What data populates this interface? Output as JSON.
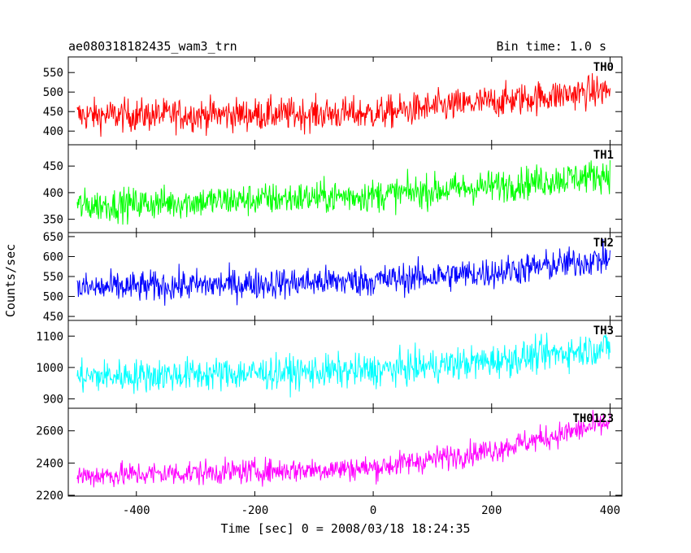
{
  "header": {
    "title": "ae080318182435_wam3_trn",
    "bin_time": "Bin time: 1.0 s"
  },
  "chart_data": {
    "type": "line",
    "title": "ae080318182435_wam3_trn",
    "xlabel": "Time [sec] 0 = 2008/03/18 18:24:35",
    "ylabel": "Counts/sec",
    "xlim": [
      -515,
      420
    ],
    "xticks": [
      -400,
      -200,
      0,
      200,
      400
    ],
    "x_start": -500,
    "x_end": 400,
    "x_step": 1,
    "grid": false,
    "panels": [
      {
        "name": "TH0",
        "color": "#ff0000",
        "ylim": [
          365,
          590
        ],
        "yticks": [
          400,
          450,
          500,
          550
        ],
        "trend": [
          [
            -500,
            440
          ],
          [
            0,
            445
          ],
          [
            200,
            475
          ],
          [
            400,
            505
          ]
        ],
        "noise": 30
      },
      {
        "name": "TH1",
        "color": "#00ff00",
        "ylim": [
          325,
          490
        ],
        "yticks": [
          350,
          400,
          450
        ],
        "trend": [
          [
            -500,
            375
          ],
          [
            0,
            395
          ],
          [
            200,
            412
          ],
          [
            400,
            435
          ]
        ],
        "noise": 22
      },
      {
        "name": "TH2",
        "color": "#0000ff",
        "ylim": [
          440,
          660
        ],
        "yticks": [
          450,
          500,
          550,
          600,
          650
        ],
        "trend": [
          [
            -500,
            520
          ],
          [
            0,
            540
          ],
          [
            200,
            560
          ],
          [
            400,
            595
          ]
        ],
        "noise": 28
      },
      {
        "name": "TH3",
        "color": "#00ffff",
        "ylim": [
          870,
          1150
        ],
        "yticks": [
          900,
          1000,
          1100
        ],
        "trend": [
          [
            -500,
            970
          ],
          [
            0,
            990
          ],
          [
            200,
            1020
          ],
          [
            400,
            1065
          ]
        ],
        "noise": 38
      },
      {
        "name": "TH0123",
        "color": "#ff00ff",
        "ylim": [
          2195,
          2740
        ],
        "yticks": [
          2200,
          2400,
          2600
        ],
        "trend": [
          [
            -500,
            2320
          ],
          [
            0,
            2370
          ],
          [
            200,
            2480
          ],
          [
            400,
            2650
          ]
        ],
        "noise": 55
      }
    ]
  }
}
